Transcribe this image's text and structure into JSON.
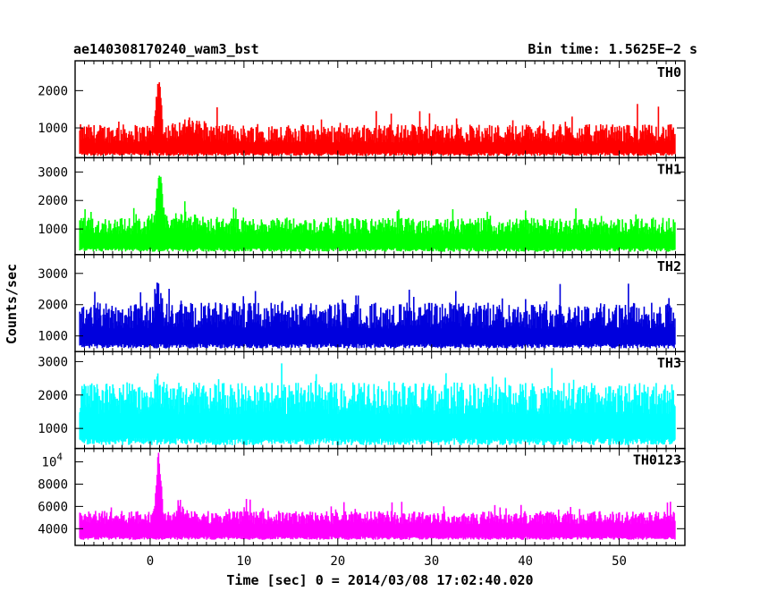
{
  "chart_data": {
    "type": "line",
    "title_left": "ae140308170240_wam3_bst",
    "title_right": "Bin time: 1.5625E−2 s",
    "xlabel": "Time [sec] 0 = 2014/03/08 17:02:40.020",
    "ylabel": "Counts/sec",
    "xlim": [
      -8,
      57
    ],
    "x_ticks": [
      0,
      10,
      20,
      30,
      40,
      50
    ],
    "x_range": [
      -7.5,
      56
    ],
    "bin_time": 0.015625,
    "panels": [
      {
        "name": "TH0",
        "color": "#ff0000",
        "ylim": [
          200,
          2800
        ],
        "y_ticks": [
          {
            "v": 1000,
            "label": "1000"
          },
          {
            "v": 2000,
            "label": "2000"
          }
        ],
        "floor": 250,
        "base": 850,
        "noise": 250,
        "max_spike": 1300,
        "bumps": [
          {
            "t": 0.9,
            "h": 1400,
            "w": 0.35
          },
          {
            "t": 4.0,
            "h": 200,
            "w": 1.5
          }
        ]
      },
      {
        "name": "TH1",
        "color": "#00ff00",
        "ylim": [
          100,
          3500
        ],
        "y_ticks": [
          {
            "v": 1000,
            "label": "1000"
          },
          {
            "v": 2000,
            "label": "2000"
          },
          {
            "v": 3000,
            "label": "3000"
          }
        ],
        "floor": 200,
        "base": 1100,
        "noise": 300,
        "max_spike": 1200,
        "bumps": [
          {
            "t": 1.0,
            "h": 1800,
            "w": 0.35
          },
          {
            "t": 3.5,
            "h": 250,
            "w": 1.5
          }
        ]
      },
      {
        "name": "TH2",
        "color": "#0000dd",
        "ylim": [
          500,
          3600
        ],
        "y_ticks": [
          {
            "v": 1000,
            "label": "1000"
          },
          {
            "v": 2000,
            "label": "2000"
          },
          {
            "v": 3000,
            "label": "3000"
          }
        ],
        "floor": 600,
        "base": 1650,
        "noise": 420,
        "max_spike": 1300,
        "bumps": [
          {
            "t": 0.8,
            "h": 800,
            "w": 0.4
          }
        ]
      },
      {
        "name": "TH3",
        "color": "#00ffff",
        "ylim": [
          400,
          3300
        ],
        "y_ticks": [
          {
            "v": 1000,
            "label": "1000"
          },
          {
            "v": 2000,
            "label": "2000"
          },
          {
            "v": 3000,
            "label": "3000"
          }
        ],
        "floor": 500,
        "base": 1900,
        "noise": 480,
        "max_spike": 1200,
        "bumps": [
          {
            "t": 0.8,
            "h": 400,
            "w": 0.4
          }
        ]
      },
      {
        "name": "TH0123",
        "color": "#ff00ff",
        "ylim": [
          2500,
          11200
        ],
        "y_ticks": [
          {
            "v": 4000,
            "label": "4000"
          },
          {
            "v": 6000,
            "label": "6000"
          },
          {
            "v": 8000,
            "label": "8000"
          },
          {
            "v": 10000,
            "label": "10",
            "sup": "4"
          }
        ],
        "floor": 3000,
        "base": 5000,
        "noise": 600,
        "max_spike": 2500,
        "bumps": [
          {
            "t": 0.9,
            "h": 5200,
            "w": 0.35
          },
          {
            "t": 3.5,
            "h": 500,
            "w": 1.5
          }
        ]
      }
    ]
  }
}
